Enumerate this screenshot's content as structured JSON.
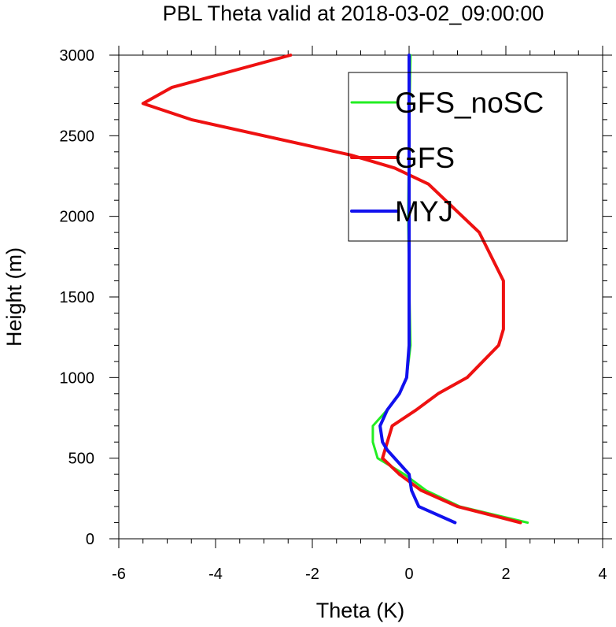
{
  "chart_data": {
    "type": "line",
    "title": "PBL Theta valid at 2018-03-02_09:00:00",
    "xlabel": "Theta (K)",
    "ylabel": "Height (m)",
    "xlim": [
      -6,
      4
    ],
    "ylim": [
      0,
      3000
    ],
    "xticks": [
      -6,
      -4,
      -2,
      0,
      2,
      4
    ],
    "yticks": [
      0,
      500,
      1000,
      1500,
      2000,
      2500,
      3000
    ],
    "xtick_labels": [
      "-6",
      "-4",
      "-2",
      "0",
      "2",
      "4"
    ],
    "ytick_labels": [
      "0",
      "500",
      "1000",
      "1500",
      "2000",
      "2500",
      "3000"
    ],
    "legend_position": "top-right",
    "series": [
      {
        "name": "GFS_noSC",
        "color": "#22ee22",
        "line_width": 3,
        "points": [
          [
            2.45,
            100
          ],
          [
            1.05,
            200
          ],
          [
            0.35,
            300
          ],
          [
            -0.1,
            400
          ],
          [
            -0.65,
            500
          ],
          [
            -0.75,
            600
          ],
          [
            -0.75,
            700
          ],
          [
            -0.45,
            800
          ],
          [
            -0.2,
            900
          ],
          [
            -0.05,
            1000
          ],
          [
            0.03,
            1200
          ],
          [
            0.0,
            1600
          ],
          [
            -0.02,
            2000
          ],
          [
            0.0,
            2500
          ],
          [
            0.03,
            3000
          ]
        ]
      },
      {
        "name": "GFS",
        "color": "#ee1111",
        "line_width": 4,
        "points": [
          [
            2.3,
            100
          ],
          [
            1.0,
            200
          ],
          [
            0.25,
            300
          ],
          [
            -0.2,
            400
          ],
          [
            -0.55,
            500
          ],
          [
            -0.35,
            700
          ],
          [
            0.15,
            800
          ],
          [
            0.6,
            900
          ],
          [
            1.2,
            1000
          ],
          [
            1.85,
            1200
          ],
          [
            1.95,
            1300
          ],
          [
            1.95,
            1600
          ],
          [
            1.45,
            1900
          ],
          [
            0.4,
            2200
          ],
          [
            -0.3,
            2300
          ],
          [
            -1.2,
            2380
          ],
          [
            -4.5,
            2600
          ],
          [
            -5.5,
            2700
          ],
          [
            -4.9,
            2800
          ],
          [
            -2.45,
            3000
          ]
        ]
      },
      {
        "name": "MYJ",
        "color": "#1111ee",
        "line_width": 4,
        "points": [
          [
            0.95,
            100
          ],
          [
            0.2,
            200
          ],
          [
            0.05,
            300
          ],
          [
            0.0,
            400
          ],
          [
            -0.15,
            450
          ],
          [
            -0.45,
            550
          ],
          [
            -0.55,
            600
          ],
          [
            -0.6,
            700
          ],
          [
            -0.45,
            800
          ],
          [
            -0.2,
            900
          ],
          [
            -0.05,
            1000
          ],
          [
            0.0,
            1200
          ],
          [
            0.0,
            1500
          ],
          [
            0.0,
            2000
          ],
          [
            0.0,
            2500
          ],
          [
            0.0,
            3000
          ]
        ]
      }
    ]
  }
}
